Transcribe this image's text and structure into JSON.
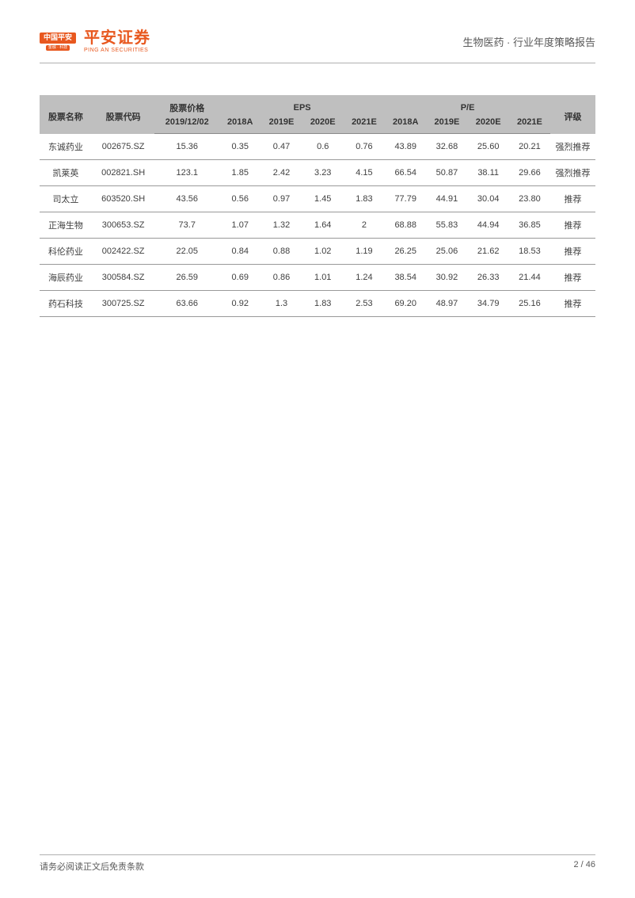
{
  "header": {
    "logo_top": "中国平安",
    "logo_bot": "金融 · 科技",
    "brand_cn": "平安证券",
    "brand_en": "PING AN SECURITIES",
    "doc_title": "生物医药 · 行业年度策略报告"
  },
  "table": {
    "header_groups": {
      "name": "股票名称",
      "code": "股票代码",
      "price": "股票价格",
      "eps": "EPS",
      "pe": "P/E",
      "rating": "评级"
    },
    "sub_headers": {
      "price_date": "2019/12/02",
      "y2018a": "2018A",
      "y2019e": "2019E",
      "y2020e": "2020E",
      "y2021e": "2021E"
    },
    "col_widths": [
      "58",
      "70",
      "72",
      "46",
      "46",
      "46",
      "46",
      "46",
      "46",
      "46",
      "46",
      "50"
    ],
    "rows": [
      {
        "name": "东诚药业",
        "code": "002675.SZ",
        "price": "15.36",
        "eps": [
          "0.35",
          "0.47",
          "0.6",
          "0.76"
        ],
        "pe": [
          "43.89",
          "32.68",
          "25.60",
          "20.21"
        ],
        "rating": "强烈推荐"
      },
      {
        "name": "凯莱英",
        "code": "002821.SH",
        "price": "123.1",
        "eps": [
          "1.85",
          "2.42",
          "3.23",
          "4.15"
        ],
        "pe": [
          "66.54",
          "50.87",
          "38.11",
          "29.66"
        ],
        "rating": "强烈推荐"
      },
      {
        "name": "司太立",
        "code": "603520.SH",
        "price": "43.56",
        "eps": [
          "0.56",
          "0.97",
          "1.45",
          "1.83"
        ],
        "pe": [
          "77.79",
          "44.91",
          "30.04",
          "23.80"
        ],
        "rating": "推荐"
      },
      {
        "name": "正海生物",
        "code": "300653.SZ",
        "price": "73.7",
        "eps": [
          "1.07",
          "1.32",
          "1.64",
          "2"
        ],
        "pe": [
          "68.88",
          "55.83",
          "44.94",
          "36.85"
        ],
        "rating": "推荐"
      },
      {
        "name": "科伦药业",
        "code": "002422.SZ",
        "price": "22.05",
        "eps": [
          "0.84",
          "0.88",
          "1.02",
          "1.19"
        ],
        "pe": [
          "26.25",
          "25.06",
          "21.62",
          "18.53"
        ],
        "rating": "推荐"
      },
      {
        "name": "海辰药业",
        "code": "300584.SZ",
        "price": "26.59",
        "eps": [
          "0.69",
          "0.86",
          "1.01",
          "1.24"
        ],
        "pe": [
          "38.54",
          "30.92",
          "26.33",
          "21.44"
        ],
        "rating": "推荐"
      },
      {
        "name": "药石科技",
        "code": "300725.SZ",
        "price": "63.66",
        "eps": [
          "0.92",
          "1.3",
          "1.83",
          "2.53"
        ],
        "pe": [
          "69.20",
          "48.97",
          "34.79",
          "25.16"
        ],
        "rating": "推荐"
      }
    ]
  },
  "footer": {
    "disclaimer": "请务必阅读正文后免责条款",
    "page": "2 / 46"
  },
  "colors": {
    "brand_orange": "#e8581f",
    "header_bg": "#bfbfbf",
    "row_border": "#999999",
    "text": "#404040",
    "rule": "#b0b0b0"
  }
}
